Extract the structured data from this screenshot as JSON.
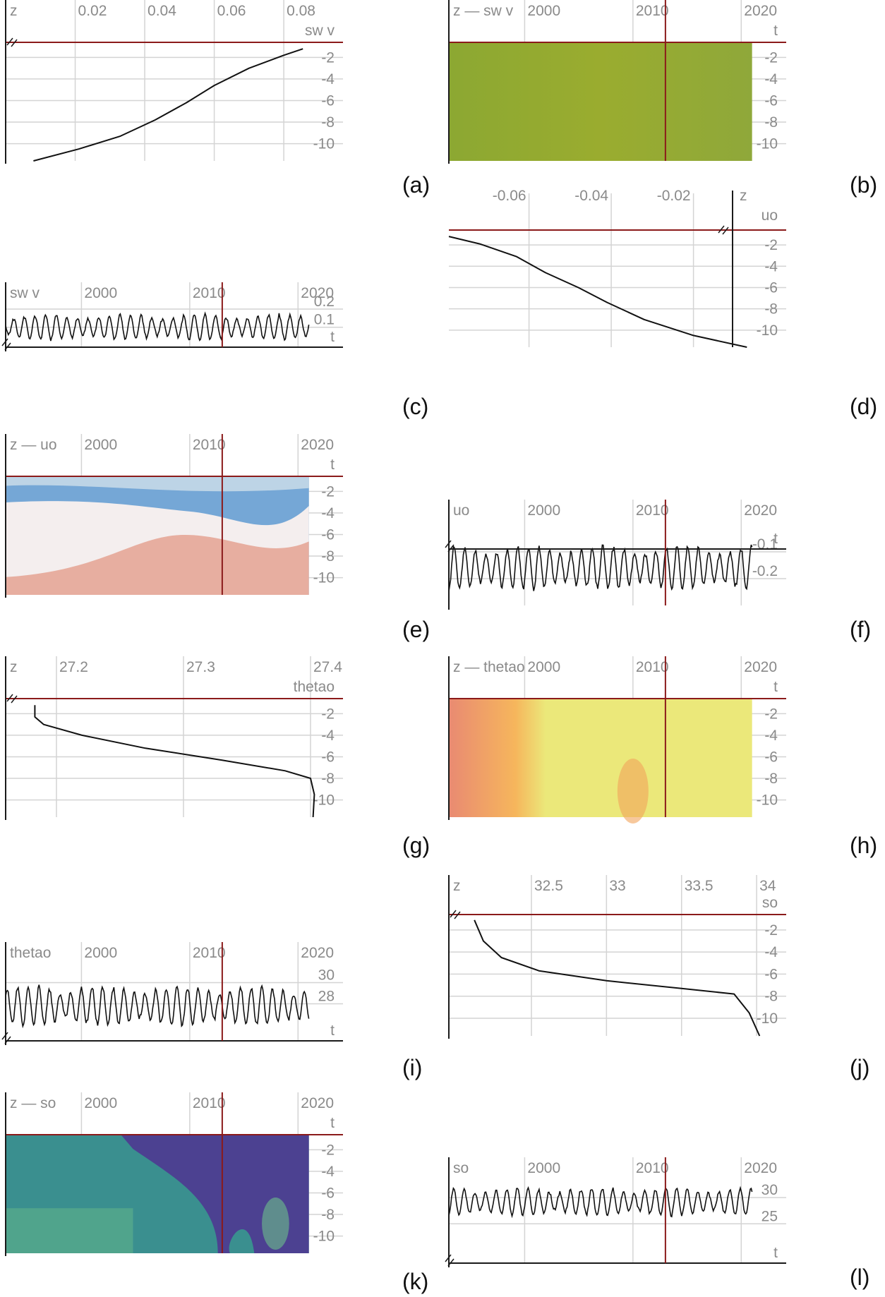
{
  "colors": {
    "grid": "#d4d4d4",
    "axis": "#1a1a1a",
    "label": "#8a8a8a",
    "marker": "#8b1a1a",
    "curve": "#111111"
  },
  "chart_data": [
    {
      "panel": "a",
      "letter": "(a)",
      "type": "line",
      "orientation": "profile",
      "title": "z",
      "xlabel": "sw v",
      "title_position": "top-left",
      "xlim": [
        0.0,
        0.095
      ],
      "ylim": [
        -11.6,
        -0.6
      ],
      "xticks": [
        0.02,
        0.04,
        0.06,
        0.08
      ],
      "xtick_labels": [
        "0.02",
        "0.04",
        "0.06",
        "0.08"
      ],
      "yticks": [
        -2,
        -4,
        -6,
        -8,
        -10
      ],
      "ytick_labels": [
        "-2",
        "-4",
        "-6",
        "-8",
        "-10"
      ],
      "marker_value": -0.6,
      "series": [
        {
          "name": "sw v",
          "x": [
            0.0855,
            0.08,
            0.07,
            0.06,
            0.052,
            0.043,
            0.033,
            0.021,
            0.008
          ],
          "z": [
            -1.2,
            -1.8,
            -3.0,
            -4.6,
            -6.2,
            -7.8,
            -9.3,
            -10.5,
            -11.6
          ]
        }
      ]
    },
    {
      "panel": "b",
      "letter": "(b)",
      "type": "heatmap",
      "title": "z — sw v",
      "xlabel": "t",
      "xlim": [
        1993,
        2023.5
      ],
      "ylim": [
        -11.6,
        -0.6
      ],
      "xticks": [
        2000,
        2010,
        2020
      ],
      "xtick_labels": [
        "2000",
        "2010",
        "2020"
      ],
      "yticks": [
        -2,
        -4,
        -6,
        -8,
        -10
      ],
      "ytick_labels": [
        "-2",
        "-4",
        "-6",
        "-8",
        "-10"
      ],
      "marker_value": -0.6,
      "marker_time": 2013,
      "data_range": [
        1993,
        2021
      ],
      "colormap": [
        "#8ca832",
        "#9aac2f",
        "#8fa83a"
      ],
      "pattern": "near-uniform"
    },
    {
      "panel": "c",
      "letter": "(c)",
      "type": "line",
      "orientation": "timeseries",
      "title": "sw v",
      "xlabel": "t",
      "xlim": [
        1993,
        2023.5
      ],
      "ylim": [
        -0.01,
        0.27
      ],
      "xticks": [
        2000,
        2010,
        2020
      ],
      "xtick_labels": [
        "2000",
        "2010",
        "2020"
      ],
      "yticks": [
        0.2,
        0.1
      ],
      "ytick_labels": [
        "0.2",
        "0.1"
      ],
      "marker_time": 2013,
      "axis_value": -0.01,
      "series": [
        {
          "name": "sw v",
          "t_start": 1993.0,
          "t_end": 2021.0,
          "samples": 336,
          "mean": 0.1,
          "amplitude": 0.06,
          "seed": 3
        }
      ]
    },
    {
      "panel": "d",
      "letter": "(d)",
      "type": "line",
      "orientation": "profile-right",
      "title": "z",
      "xlabel": "uo",
      "xlim": [
        -0.0795,
        0.0005
      ],
      "ylim": [
        -11.6,
        -0.6
      ],
      "xticks": [
        -0.06,
        -0.04,
        -0.02
      ],
      "xtick_labels": [
        "-0.06",
        "-0.04",
        "-0.02"
      ],
      "yticks": [
        -2,
        -4,
        -6,
        -8,
        -10
      ],
      "ytick_labels": [
        "-2",
        "-4",
        "-6",
        "-8",
        "-10"
      ],
      "marker_value": -0.6,
      "series": [
        {
          "name": "uo",
          "x": [
            -0.0795,
            -0.072,
            -0.063,
            -0.056,
            -0.048,
            -0.041,
            -0.032,
            -0.02,
            -0.007
          ],
          "z": [
            -1.2,
            -1.9,
            -3.1,
            -4.6,
            -6.0,
            -7.4,
            -9.0,
            -10.5,
            -11.6
          ]
        }
      ]
    },
    {
      "panel": "e",
      "letter": "(e)",
      "type": "heatmap",
      "title": "z — uo",
      "xlabel": "t",
      "xlim": [
        1993,
        2023.5
      ],
      "ylim": [
        -11.6,
        -0.6
      ],
      "xticks": [
        2000,
        2010,
        2020
      ],
      "xtick_labels": [
        "2000",
        "2010",
        "2020"
      ],
      "yticks": [
        -2,
        -4,
        -6,
        -8,
        -10
      ],
      "ytick_labels": [
        "-2",
        "-4",
        "-6",
        "-8",
        "-10"
      ],
      "marker_value": -0.6,
      "marker_time": 2013,
      "data_range": [
        1993,
        2021
      ],
      "colormap": [
        "#2f7fc1",
        "#f2f2f2",
        "#d66a4e"
      ],
      "pattern": "diverging-wave"
    },
    {
      "panel": "f",
      "letter": "(f)",
      "type": "line",
      "orientation": "timeseries",
      "title": "uo",
      "xlabel": "t",
      "xlim": [
        1993,
        2023.5
      ],
      "ylim": [
        -0.3,
        0.0
      ],
      "xticks": [
        2000,
        2010,
        2020
      ],
      "xtick_labels": [
        "2000",
        "2010",
        "2020"
      ],
      "yticks": [
        -0.1,
        -0.2
      ],
      "ytick_labels": [
        "-0.1",
        "-0.2"
      ],
      "marker_time": 2013,
      "axis_value": 0.0,
      "series": [
        {
          "name": "uo",
          "t_start": 1993.0,
          "t_end": 2021.0,
          "samples": 336,
          "mean": -0.16,
          "amplitude": 0.07,
          "seed": 11
        }
      ]
    },
    {
      "panel": "g",
      "letter": "(g)",
      "type": "line",
      "orientation": "profile",
      "title": "z",
      "xlabel": "thetao",
      "xlim": [
        27.16,
        27.42
      ],
      "ylim": [
        -11.6,
        -0.6
      ],
      "xticks": [
        27.2,
        27.3,
        27.4
      ],
      "xtick_labels": [
        "27.2",
        "27.3",
        "27.4"
      ],
      "yticks": [
        -2,
        -4,
        -6,
        -8,
        -10
      ],
      "ytick_labels": [
        "-2",
        "-4",
        "-6",
        "-8",
        "-10"
      ],
      "marker_value": -0.6,
      "series": [
        {
          "name": "thetao",
          "x": [
            27.183,
            27.183,
            27.19,
            27.22,
            27.27,
            27.33,
            27.38,
            27.4,
            27.403,
            27.402
          ],
          "z": [
            -1.2,
            -2.3,
            -3.0,
            -4.0,
            -5.2,
            -6.3,
            -7.3,
            -8.0,
            -9.5,
            -11.6
          ]
        }
      ]
    },
    {
      "panel": "h",
      "letter": "(h)",
      "type": "heatmap",
      "title": "z — thetao",
      "xlabel": "t",
      "xlim": [
        1993,
        2023.5
      ],
      "ylim": [
        -11.6,
        -0.6
      ],
      "xticks": [
        2000,
        2010,
        2020
      ],
      "xtick_labels": [
        "2000",
        "2010",
        "2020"
      ],
      "yticks": [
        -2,
        -4,
        -6,
        -8,
        -10
      ],
      "ytick_labels": [
        "-2",
        "-4",
        "-6",
        "-8",
        "-10"
      ],
      "marker_value": -0.6,
      "marker_time": 2013,
      "data_range": [
        1993,
        2021
      ],
      "colormap": [
        "#e98a72",
        "#f6b65c",
        "#ebe87a"
      ],
      "pattern": "warm-left"
    },
    {
      "panel": "i",
      "letter": "(i)",
      "type": "line",
      "orientation": "timeseries",
      "title": "thetao",
      "xlabel": "t",
      "xlim": [
        1993,
        2023.5
      ],
      "ylim": [
        24.5,
        32.5
      ],
      "xticks": [
        2000,
        2010,
        2020
      ],
      "xtick_labels": [
        "2000",
        "2010",
        "2020"
      ],
      "yticks": [
        30,
        28
      ],
      "ytick_labels": [
        "30",
        "28"
      ],
      "marker_time": 2013,
      "axis_value": 24.5,
      "series": [
        {
          "name": "thetao",
          "t_start": 1993.0,
          "t_end": 2021.0,
          "samples": 336,
          "mean": 27.8,
          "amplitude": 1.6,
          "seed": 7
        }
      ]
    },
    {
      "panel": "j",
      "letter": "(j)",
      "type": "line",
      "orientation": "profile",
      "title": "z",
      "xlabel": "so",
      "xlim": [
        31.95,
        34.15
      ],
      "ylim": [
        -11.6,
        -0.6
      ],
      "xticks": [
        32.5,
        33.0,
        33.5,
        34.0
      ],
      "xtick_labels": [
        "32.5",
        "33",
        "33.5",
        "34"
      ],
      "yticks": [
        -2,
        -4,
        -6,
        -8,
        -10
      ],
      "ytick_labels": [
        "-2",
        "-4",
        "-6",
        "-8",
        "-10"
      ],
      "marker_value": -0.6,
      "series": [
        {
          "name": "so",
          "x": [
            32.12,
            32.18,
            32.3,
            32.55,
            33.0,
            33.5,
            33.85,
            33.95,
            34.02
          ],
          "z": [
            -1.1,
            -3.0,
            -4.5,
            -5.7,
            -6.6,
            -7.3,
            -7.8,
            -9.5,
            -11.6
          ]
        }
      ]
    },
    {
      "panel": "k",
      "letter": "(k)",
      "type": "heatmap",
      "title": "z — so",
      "xlabel": "t",
      "xlim": [
        1993,
        2023.5
      ],
      "ylim": [
        -11.6,
        -0.6
      ],
      "xticks": [
        2000,
        2010,
        2020
      ],
      "xtick_labels": [
        "2000",
        "2010",
        "2020"
      ],
      "yticks": [
        -2,
        -4,
        -6,
        -8,
        -10
      ],
      "ytick_labels": [
        "-2",
        "-4",
        "-6",
        "-8",
        "-10"
      ],
      "marker_value": -0.6,
      "marker_time": 2013,
      "data_range": [
        1993,
        2021
      ],
      "colormap": [
        "#3a8f8f",
        "#4d3d91",
        "#6cbf8a"
      ],
      "pattern": "salinity"
    },
    {
      "panel": "l",
      "letter": "(l)",
      "type": "line",
      "orientation": "timeseries",
      "title": "so",
      "xlabel": "t",
      "xlim": [
        1993,
        2023.5
      ],
      "ylim": [
        17.5,
        35
      ],
      "xticks": [
        2000,
        2010,
        2020
      ],
      "xtick_labels": [
        "2000",
        "2010",
        "2020"
      ],
      "yticks": [
        30,
        25
      ],
      "ytick_labels": [
        "30",
        "25"
      ],
      "marker_time": 2013,
      "axis_value": 17.5,
      "series": [
        {
          "name": "so",
          "t_start": 1993.0,
          "t_end": 2021.0,
          "samples": 336,
          "mean": 29.2,
          "amplitude": 2.3,
          "seed": 5
        }
      ]
    }
  ]
}
